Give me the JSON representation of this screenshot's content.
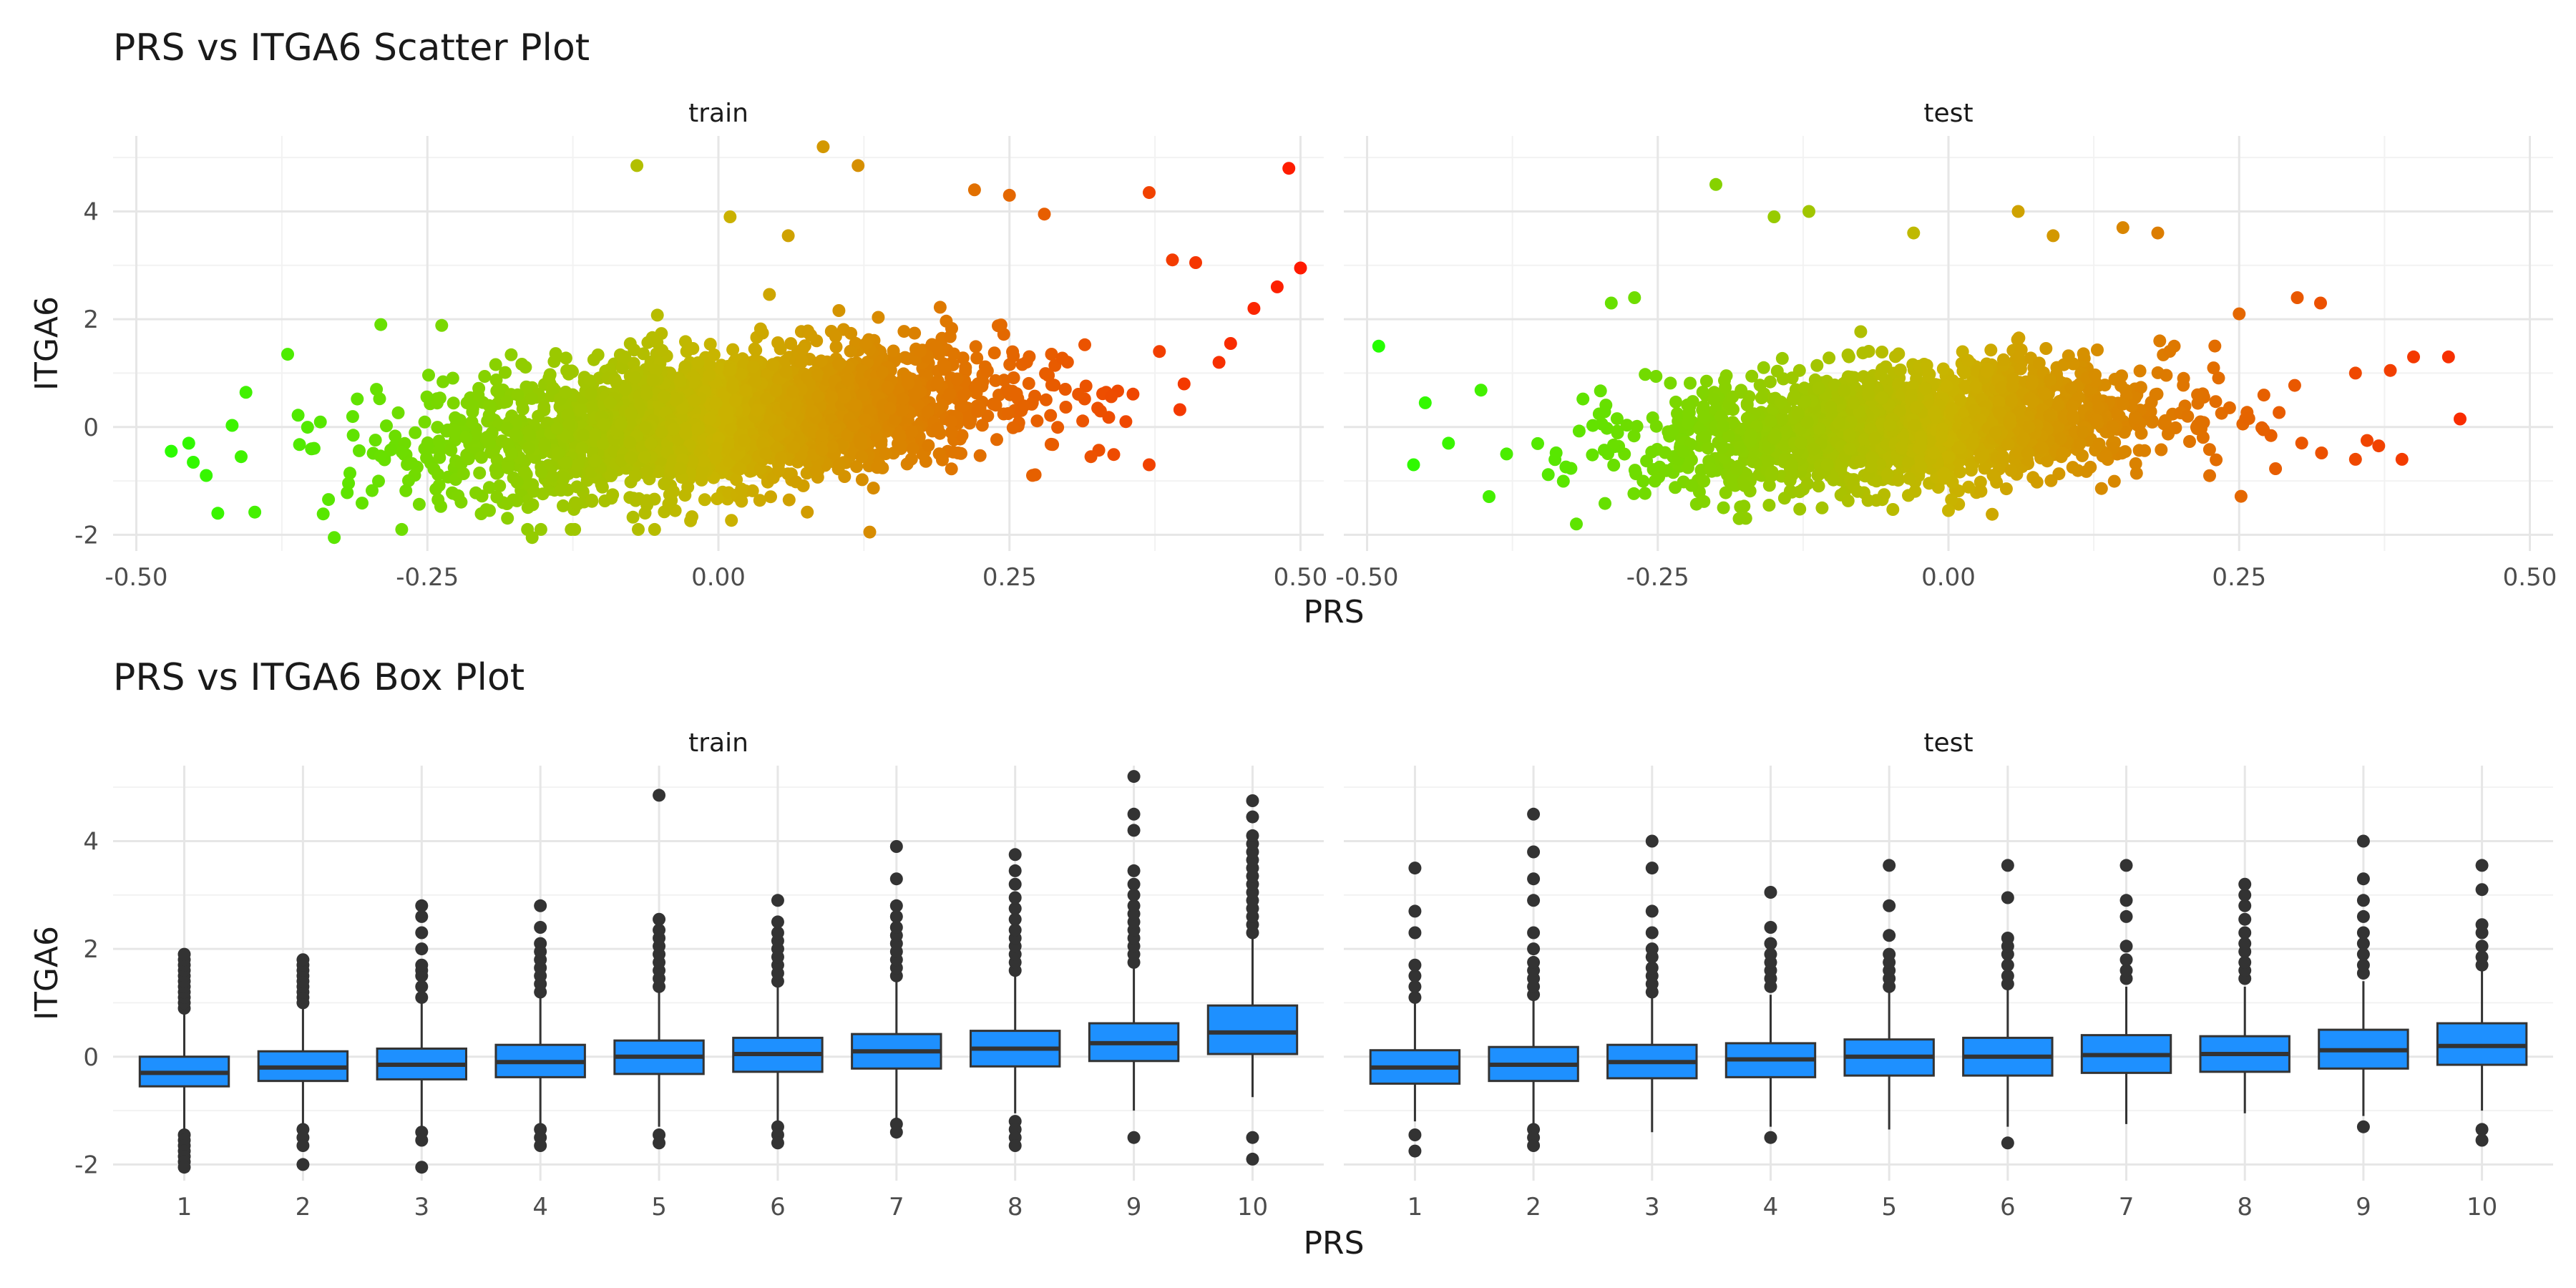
{
  "chart_data": [
    {
      "type": "scatter",
      "title": "PRS vs ITGA6 Scatter Plot",
      "xlabel": "PRS",
      "ylabel": "ITGA6",
      "xlim": [
        -0.52,
        0.52
      ],
      "ylim": [
        -2.3,
        5.4
      ],
      "x_ticks": [
        -0.5,
        -0.25,
        0.0,
        0.25,
        0.5
      ],
      "x_tick_labels": [
        "-0.50",
        "-0.25",
        "0.00",
        "0.25",
        "0.50"
      ],
      "y_ticks": [
        -2,
        0,
        2,
        4
      ],
      "y_tick_labels": [
        "-2",
        "0",
        "2",
        "4"
      ],
      "grid": true,
      "color_scale": {
        "low": "#22ff00",
        "mid": "#c9b400",
        "high": "#ff1a00"
      },
      "panels": [
        {
          "name": "train",
          "cloud": {
            "n": 2600,
            "x_mean": 0.0,
            "x_sd": 0.12,
            "x_min": -0.47,
            "x_max": 0.45,
            "slope": 2.0,
            "intercept": 0.15,
            "noise_sd": 0.62
          },
          "points": [
            {
              "x": -0.47,
              "y": -0.45
            },
            {
              "x": -0.455,
              "y": -0.3
            },
            {
              "x": -0.44,
              "y": -0.9
            },
            {
              "x": -0.43,
              "y": -1.6
            },
            {
              "x": -0.41,
              "y": -0.55
            },
            {
              "x": -0.37,
              "y": 1.35
            },
            {
              "x": -0.29,
              "y": 1.9
            },
            {
              "x": -0.33,
              "y": -2.05
            },
            {
              "x": -0.16,
              "y": -2.05
            },
            {
              "x": -0.07,
              "y": 4.85
            },
            {
              "x": 0.09,
              "y": 5.2
            },
            {
              "x": 0.12,
              "y": 4.85
            },
            {
              "x": 0.01,
              "y": 3.9
            },
            {
              "x": 0.06,
              "y": 3.55
            },
            {
              "x": 0.22,
              "y": 4.4
            },
            {
              "x": 0.25,
              "y": 4.3
            },
            {
              "x": 0.28,
              "y": 3.95
            },
            {
              "x": 0.13,
              "y": -1.95
            },
            {
              "x": 0.37,
              "y": 4.35
            },
            {
              "x": 0.39,
              "y": 3.1
            },
            {
              "x": 0.41,
              "y": 3.05
            },
            {
              "x": 0.44,
              "y": 1.55
            },
            {
              "x": 0.43,
              "y": 1.2
            },
            {
              "x": 0.4,
              "y": 0.8
            },
            {
              "x": 0.46,
              "y": 2.2
            },
            {
              "x": 0.48,
              "y": 2.6
            },
            {
              "x": 0.49,
              "y": 4.8
            },
            {
              "x": 0.5,
              "y": 2.95
            },
            {
              "x": 0.37,
              "y": -0.7
            },
            {
              "x": 0.32,
              "y": -0.55
            },
            {
              "x": 0.35,
              "y": 0.1
            }
          ]
        },
        {
          "name": "test",
          "cloud": {
            "n": 1900,
            "x_mean": -0.03,
            "x_sd": 0.11,
            "x_min": -0.46,
            "x_max": 0.4,
            "slope": 1.3,
            "intercept": 0.05,
            "noise_sd": 0.55
          },
          "points": [
            {
              "x": -0.49,
              "y": 1.5
            },
            {
              "x": -0.45,
              "y": 0.45
            },
            {
              "x": -0.46,
              "y": -0.7
            },
            {
              "x": -0.43,
              "y": -0.3
            },
            {
              "x": -0.38,
              "y": -0.5
            },
            {
              "x": -0.32,
              "y": -1.8
            },
            {
              "x": -0.29,
              "y": 2.3
            },
            {
              "x": -0.27,
              "y": 2.4
            },
            {
              "x": -0.2,
              "y": 4.5
            },
            {
              "x": -0.15,
              "y": 3.9
            },
            {
              "x": -0.12,
              "y": 4.0
            },
            {
              "x": -0.03,
              "y": 3.6
            },
            {
              "x": 0.06,
              "y": 4.0
            },
            {
              "x": 0.09,
              "y": 3.55
            },
            {
              "x": 0.15,
              "y": 3.7
            },
            {
              "x": 0.18,
              "y": 3.6
            },
            {
              "x": 0.0,
              "y": -1.55
            },
            {
              "x": -0.18,
              "y": -1.7
            },
            {
              "x": 0.25,
              "y": 2.1
            },
            {
              "x": 0.3,
              "y": 2.4
            },
            {
              "x": 0.32,
              "y": 2.3
            },
            {
              "x": 0.38,
              "y": 1.05
            },
            {
              "x": 0.35,
              "y": 1.0
            },
            {
              "x": 0.36,
              "y": -0.25
            },
            {
              "x": 0.37,
              "y": -0.35
            },
            {
              "x": 0.39,
              "y": -0.6
            },
            {
              "x": 0.35,
              "y": -0.6
            },
            {
              "x": 0.4,
              "y": 1.3
            },
            {
              "x": 0.43,
              "y": 1.3
            },
            {
              "x": 0.44,
              "y": 0.15
            }
          ]
        }
      ]
    },
    {
      "type": "box",
      "title": "PRS vs ITGA6 Box Plot",
      "xlabel": "PRS",
      "ylabel": "ITGA6",
      "categories": [
        "1",
        "2",
        "3",
        "4",
        "5",
        "6",
        "7",
        "8",
        "9",
        "10"
      ],
      "ylim": [
        -2.3,
        5.4
      ],
      "y_ticks": [
        -2,
        0,
        2,
        4
      ],
      "y_tick_labels": [
        "-2",
        "0",
        "2",
        "4"
      ],
      "grid": true,
      "box_color": "#1e90ff",
      "panels": [
        {
          "name": "train",
          "boxes": [
            {
              "q1": -0.55,
              "median": -0.3,
              "q3": 0.0,
              "lower": -1.4,
              "upper": 0.85,
              "outliers_low": [
                -1.45,
                -1.55,
                -1.65,
                -1.75,
                -1.85,
                -1.95,
                -2.05
              ],
              "outliers_high": [
                0.9,
                1.0,
                1.1,
                1.2,
                1.3,
                1.4,
                1.5,
                1.6,
                1.7,
                1.8,
                1.9
              ]
            },
            {
              "q1": -0.45,
              "median": -0.2,
              "q3": 0.1,
              "lower": -1.3,
              "upper": 0.9,
              "outliers_low": [
                -1.35,
                -1.5,
                -1.65,
                -2.0
              ],
              "outliers_high": [
                1.0,
                1.1,
                1.2,
                1.3,
                1.4,
                1.5,
                1.6,
                1.7,
                1.8
              ]
            },
            {
              "q1": -0.42,
              "median": -0.15,
              "q3": 0.15,
              "lower": -1.3,
              "upper": 1.0,
              "outliers_low": [
                -1.4,
                -1.55,
                -2.05
              ],
              "outliers_high": [
                1.1,
                1.3,
                1.5,
                1.6,
                1.7,
                2.0,
                2.3,
                2.6,
                2.8
              ]
            },
            {
              "q1": -0.38,
              "median": -0.1,
              "q3": 0.22,
              "lower": -1.25,
              "upper": 1.1,
              "outliers_low": [
                -1.35,
                -1.5,
                -1.65
              ],
              "outliers_high": [
                1.2,
                1.35,
                1.5,
                1.65,
                1.8,
                1.95,
                2.1,
                2.4,
                2.8
              ]
            },
            {
              "q1": -0.32,
              "median": 0.0,
              "q3": 0.3,
              "lower": -1.3,
              "upper": 1.2,
              "outliers_low": [
                -1.45,
                -1.6
              ],
              "outliers_high": [
                1.3,
                1.45,
                1.6,
                1.75,
                1.9,
                2.05,
                2.2,
                2.35,
                2.55,
                4.85
              ]
            },
            {
              "q1": -0.28,
              "median": 0.05,
              "q3": 0.35,
              "lower": -1.2,
              "upper": 1.3,
              "outliers_low": [
                -1.3,
                -1.45,
                -1.6
              ],
              "outliers_high": [
                1.4,
                1.55,
                1.7,
                1.85,
                2.0,
                2.15,
                2.3,
                2.5,
                2.9
              ]
            },
            {
              "q1": -0.22,
              "median": 0.1,
              "q3": 0.42,
              "lower": -1.15,
              "upper": 1.4,
              "outliers_low": [
                -1.25,
                -1.4
              ],
              "outliers_high": [
                1.5,
                1.65,
                1.8,
                1.95,
                2.1,
                2.25,
                2.4,
                2.6,
                2.8,
                3.3,
                3.9
              ]
            },
            {
              "q1": -0.18,
              "median": 0.15,
              "q3": 0.48,
              "lower": -1.05,
              "upper": 1.5,
              "outliers_low": [
                -1.2,
                -1.35,
                -1.5,
                -1.65
              ],
              "outliers_high": [
                1.6,
                1.75,
                1.9,
                2.05,
                2.2,
                2.35,
                2.55,
                2.75,
                2.95,
                3.2,
                3.45,
                3.75
              ]
            },
            {
              "q1": -0.08,
              "median": 0.25,
              "q3": 0.62,
              "lower": -1.0,
              "upper": 1.65,
              "outliers_low": [
                -1.5
              ],
              "outliers_high": [
                1.75,
                1.9,
                2.05,
                2.2,
                2.35,
                2.5,
                2.65,
                2.8,
                3.0,
                3.2,
                3.45,
                4.2,
                4.5,
                5.2
              ]
            },
            {
              "q1": 0.05,
              "median": 0.45,
              "q3": 0.95,
              "lower": -0.75,
              "upper": 2.2,
              "outliers_low": [
                -1.5,
                -1.9
              ],
              "outliers_high": [
                2.3,
                2.45,
                2.6,
                2.75,
                2.9,
                3.05,
                3.2,
                3.35,
                3.5,
                3.65,
                3.8,
                3.95,
                4.1,
                4.45,
                4.75
              ]
            }
          ]
        },
        {
          "name": "test",
          "boxes": [
            {
              "q1": -0.5,
              "median": -0.2,
              "q3": 0.12,
              "lower": -1.2,
              "upper": 1.0,
              "outliers_low": [
                -1.45,
                -1.75
              ],
              "outliers_high": [
                1.1,
                1.3,
                1.5,
                1.7,
                2.3,
                2.7,
                3.5
              ]
            },
            {
              "q1": -0.45,
              "median": -0.15,
              "q3": 0.18,
              "lower": -1.25,
              "upper": 1.05,
              "outliers_low": [
                -1.35,
                -1.5,
                -1.65
              ],
              "outliers_high": [
                1.15,
                1.3,
                1.45,
                1.6,
                1.75,
                2.0,
                2.3,
                2.9,
                3.3,
                3.8,
                4.5
              ]
            },
            {
              "q1": -0.4,
              "median": -0.1,
              "q3": 0.22,
              "lower": -1.4,
              "upper": 1.1,
              "outliers_low": [],
              "outliers_high": [
                1.2,
                1.35,
                1.5,
                1.65,
                1.85,
                2.0,
                2.3,
                2.7,
                3.5,
                4.0
              ]
            },
            {
              "q1": -0.38,
              "median": -0.05,
              "q3": 0.25,
              "lower": -1.3,
              "upper": 1.15,
              "outliers_low": [
                -1.5
              ],
              "outliers_high": [
                1.3,
                1.45,
                1.6,
                1.75,
                1.9,
                2.1,
                2.4,
                3.05
              ]
            },
            {
              "q1": -0.35,
              "median": 0.0,
              "q3": 0.32,
              "lower": -1.35,
              "upper": 1.2,
              "outliers_low": [],
              "outliers_high": [
                1.3,
                1.45,
                1.6,
                1.75,
                1.9,
                2.25,
                2.8,
                3.55
              ]
            },
            {
              "q1": -0.35,
              "median": 0.0,
              "q3": 0.35,
              "lower": -1.3,
              "upper": 1.25,
              "outliers_low": [
                -1.6
              ],
              "outliers_high": [
                1.35,
                1.5,
                1.7,
                1.9,
                2.05,
                2.2,
                2.95,
                3.55
              ]
            },
            {
              "q1": -0.3,
              "median": 0.03,
              "q3": 0.4,
              "lower": -1.25,
              "upper": 1.3,
              "outliers_low": [],
              "outliers_high": [
                1.45,
                1.6,
                1.8,
                2.05,
                2.6,
                2.9,
                3.55
              ]
            },
            {
              "q1": -0.28,
              "median": 0.05,
              "q3": 0.38,
              "lower": -1.05,
              "upper": 1.3,
              "outliers_low": [],
              "outliers_high": [
                1.45,
                1.6,
                1.75,
                1.95,
                2.1,
                2.3,
                2.55,
                2.8,
                3.0,
                3.2
              ]
            },
            {
              "q1": -0.22,
              "median": 0.12,
              "q3": 0.5,
              "lower": -1.1,
              "upper": 1.4,
              "outliers_low": [
                -1.3
              ],
              "outliers_high": [
                1.55,
                1.7,
                1.9,
                2.1,
                2.3,
                2.6,
                2.9,
                3.3,
                4.0
              ]
            },
            {
              "q1": -0.15,
              "median": 0.2,
              "q3": 0.62,
              "lower": -1.0,
              "upper": 1.6,
              "outliers_low": [
                -1.35,
                -1.55
              ],
              "outliers_high": [
                1.7,
                1.85,
                2.05,
                2.3,
                2.45,
                3.1,
                3.55
              ]
            }
          ]
        }
      ]
    }
  ]
}
